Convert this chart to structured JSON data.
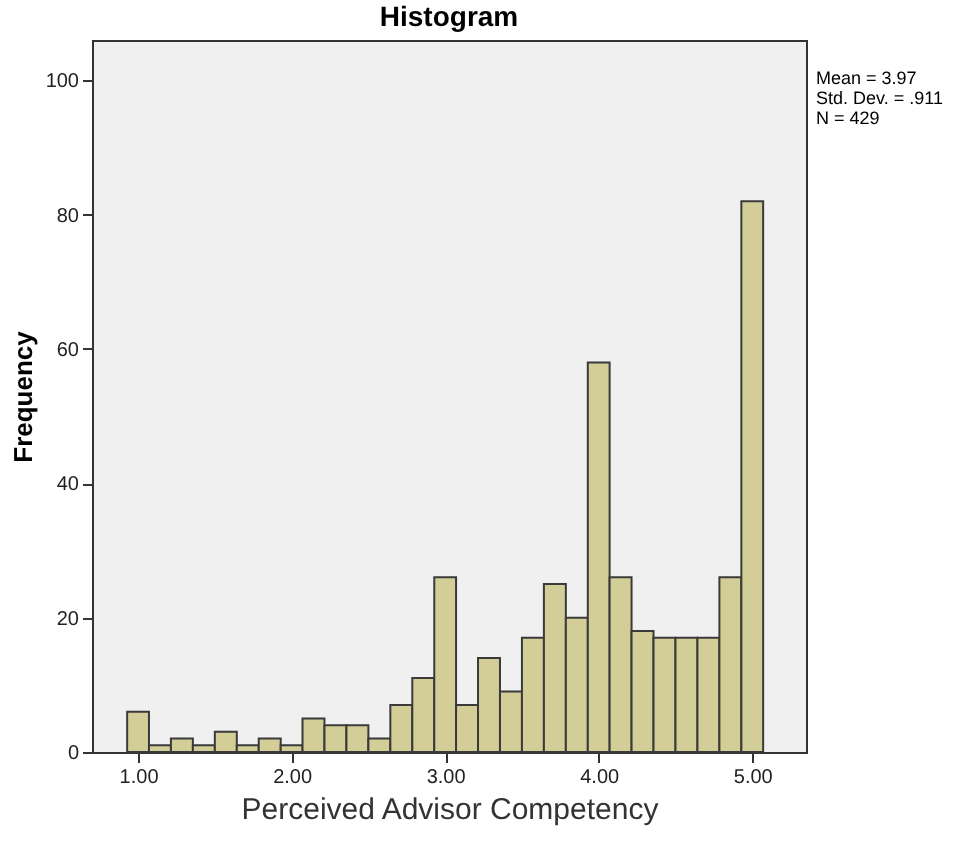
{
  "chart_data": {
    "type": "histogram",
    "title": "Histogram",
    "xlabel": "Perceived Advisor Competency",
    "ylabel": "Frequency",
    "bins": [
      0.929,
      1.071,
      1.214,
      1.357,
      1.5,
      1.643,
      1.786,
      1.929,
      2.071,
      2.214,
      2.357,
      2.5,
      2.643,
      2.786,
      2.929,
      3.071,
      3.214,
      3.357,
      3.5,
      3.643,
      3.786,
      3.929,
      4.071,
      4.214,
      4.357,
      4.5,
      4.643,
      4.786,
      4.929,
      5.071
    ],
    "values": [
      6,
      1,
      2,
      1,
      3,
      1,
      2,
      1,
      5,
      4,
      4,
      2,
      7,
      11,
      26,
      7,
      14,
      9,
      17,
      25,
      20,
      58,
      26,
      18,
      17,
      17,
      17,
      26,
      82
    ],
    "color": "#d3ce97",
    "xlim": [
      0.7,
      5.35
    ],
    "ylim": [
      0,
      106
    ],
    "xticks": [
      {
        "value": 1,
        "label": "1.00"
      },
      {
        "value": 2,
        "label": "2.00"
      },
      {
        "value": 3,
        "label": "3.00"
      },
      {
        "value": 4,
        "label": "4.00"
      },
      {
        "value": 5,
        "label": "5.00"
      }
    ],
    "yticks": [
      0,
      20,
      40,
      60,
      80,
      100
    ],
    "annotations": [
      "Mean = 3.97",
      "Std. Dev. = .911",
      "N = 429"
    ]
  }
}
